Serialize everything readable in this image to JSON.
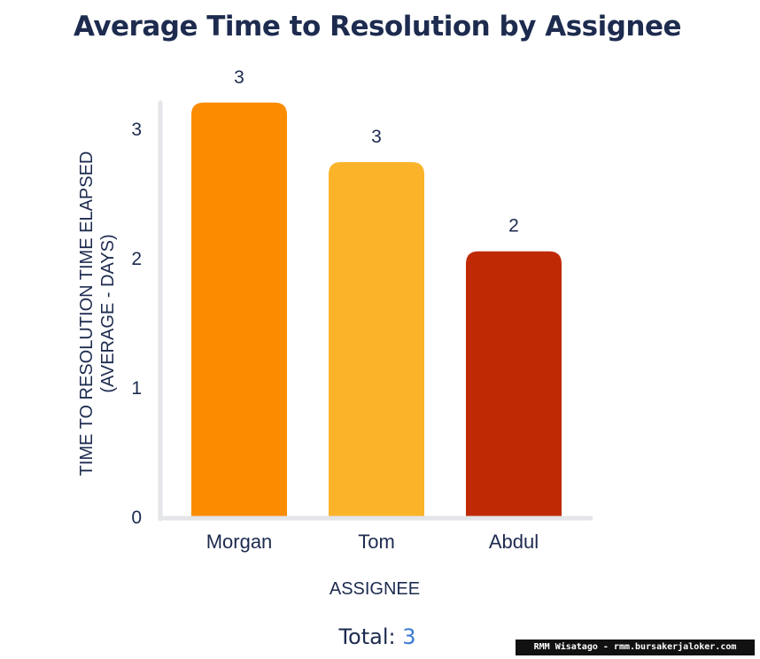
{
  "chart_data": {
    "type": "bar",
    "title": "Average Time to Resolution by Assignee",
    "xlabel": "ASSIGNEE",
    "ylabel_line1": "TIME TO RESOLUTION TIME ELAPSED",
    "ylabel_line2": "(AVERAGE - DAYS)",
    "categories": [
      "Morgan",
      "Tom",
      "Abdul"
    ],
    "values": [
      3.2,
      2.74,
      2.05
    ],
    "data_labels": [
      "3",
      "3",
      "2"
    ],
    "colors": [
      "#fb8c00",
      "#fbb42a",
      "#bf2a05"
    ],
    "yticks": [
      "0",
      "1",
      "2",
      "3"
    ],
    "ylim": [
      0,
      3.2
    ],
    "grid": false
  },
  "summary": {
    "total_label": "Total:",
    "total_value": "3"
  },
  "watermark": {
    "text": "RMM Wisatago - rmm.bursakerjaloker.com"
  },
  "colors": {
    "title": "#1d2b4f",
    "axis": "#e3e5e8",
    "total_value": "#3a7bd5"
  }
}
